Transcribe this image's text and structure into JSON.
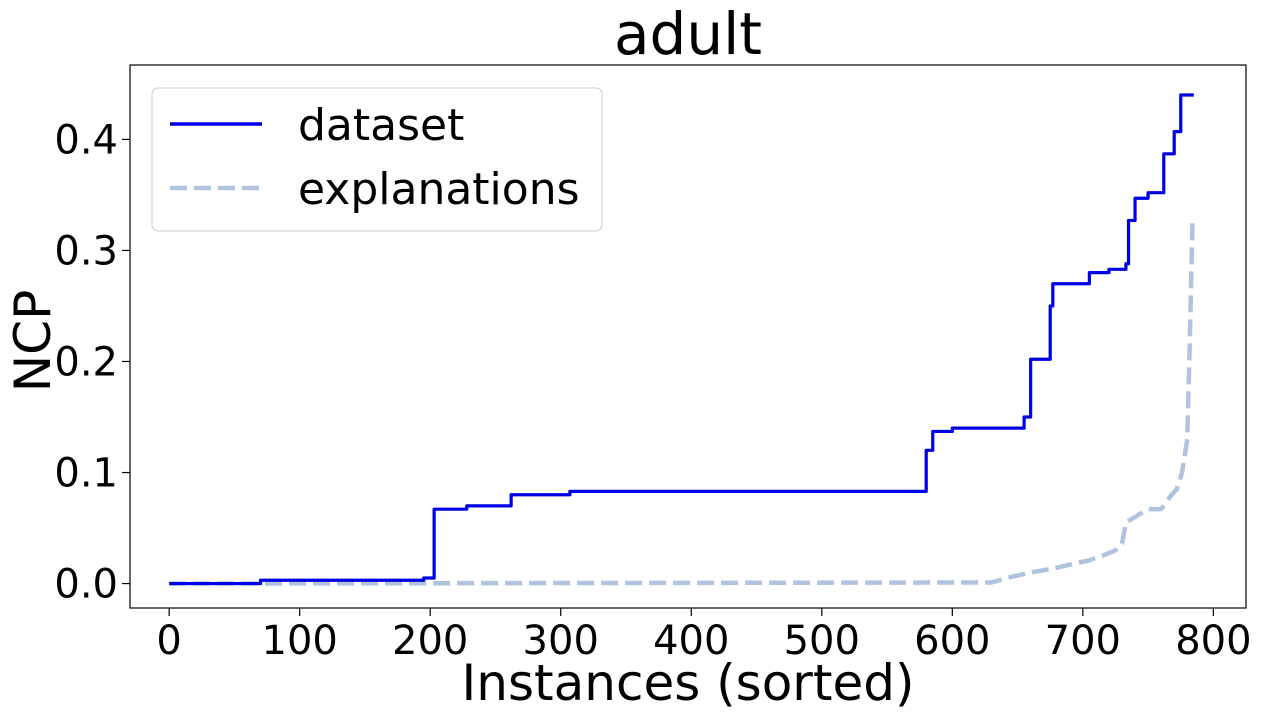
{
  "chart_data": {
    "type": "line",
    "title": "adult",
    "xlabel": "Instances (sorted)",
    "ylabel": "NCP",
    "xlim": [
      -30,
      825
    ],
    "ylim": [
      -0.022,
      0.467
    ],
    "xticks": [
      0,
      100,
      200,
      300,
      400,
      500,
      600,
      700,
      800
    ],
    "xtick_labels": [
      "0",
      "100",
      "200",
      "300",
      "400",
      "500",
      "600",
      "700",
      "800"
    ],
    "yticks": [
      0.0,
      0.1,
      0.2,
      0.3,
      0.4
    ],
    "ytick_labels": [
      "0.0",
      "0.1",
      "0.2",
      "0.3",
      "0.4"
    ],
    "grid": false,
    "legend_position": "top-left",
    "series": [
      {
        "name": "dataset",
        "color": "#0000e6",
        "style": "solid",
        "step": true,
        "x": [
          0,
          70,
          195,
          203,
          228,
          262,
          307,
          580,
          585,
          590,
          600,
          655,
          660,
          668,
          675,
          677,
          705,
          720,
          733,
          735,
          740,
          750,
          762,
          765,
          770,
          775,
          785
        ],
        "y": [
          0.0,
          0.003,
          0.005,
          0.067,
          0.07,
          0.08,
          0.083,
          0.12,
          0.137,
          0.137,
          0.14,
          0.15,
          0.202,
          0.202,
          0.25,
          0.27,
          0.28,
          0.283,
          0.288,
          0.327,
          0.347,
          0.352,
          0.387,
          0.387,
          0.407,
          0.44,
          0.44
        ]
      },
      {
        "name": "explanations",
        "color": "#b0c4de",
        "style": "dashed",
        "step": false,
        "x": [
          0,
          630,
          645,
          660,
          675,
          690,
          705,
          715,
          725,
          730,
          733,
          740,
          750,
          760,
          768,
          772,
          776,
          780,
          782,
          784
        ],
        "y": [
          0.0,
          0.001,
          0.006,
          0.01,
          0.013,
          0.017,
          0.021,
          0.025,
          0.03,
          0.036,
          0.055,
          0.06,
          0.067,
          0.067,
          0.08,
          0.085,
          0.1,
          0.13,
          0.22,
          0.325
        ]
      }
    ]
  }
}
